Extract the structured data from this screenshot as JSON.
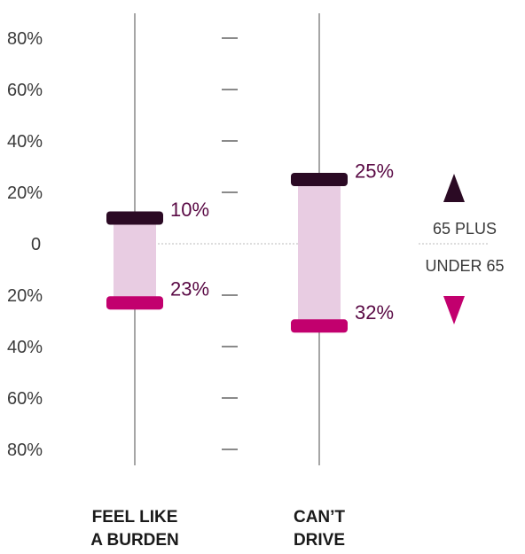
{
  "chart_data": {
    "type": "range-bar",
    "y_ticks": [
      {
        "value": 80,
        "label": "80%"
      },
      {
        "value": 60,
        "label": "60%"
      },
      {
        "value": 40,
        "label": "40%"
      },
      {
        "value": 20,
        "label": "20%"
      },
      {
        "value": 0,
        "label": "0"
      },
      {
        "value": -20,
        "label": "20%"
      },
      {
        "value": -40,
        "label": "40%"
      },
      {
        "value": -60,
        "label": "60%"
      },
      {
        "value": -80,
        "label": "80%"
      }
    ],
    "ylim": [
      -85,
      90
    ],
    "categories": [
      {
        "label_lines": [
          "FEEL LIKE",
          "A BURDEN"
        ],
        "sixty_five_plus": 10,
        "under_65": 23,
        "sixty_five_plus_label": "10%",
        "under_65_label": "23%"
      },
      {
        "label_lines": [
          "CAN’T",
          "DRIVE"
        ],
        "sixty_five_plus": 25,
        "under_65": 32,
        "sixty_five_plus_label": "25%",
        "under_65_label": "32%"
      }
    ],
    "legend": {
      "upper": "65 PLUS",
      "lower": "UNDER 65"
    },
    "colors": {
      "sixty_five_plus": "#2b0a24",
      "under_65": "#c2006e",
      "range_fill": "#e8cce2",
      "value_text": "#5a0a45",
      "axis": "#888888"
    }
  }
}
